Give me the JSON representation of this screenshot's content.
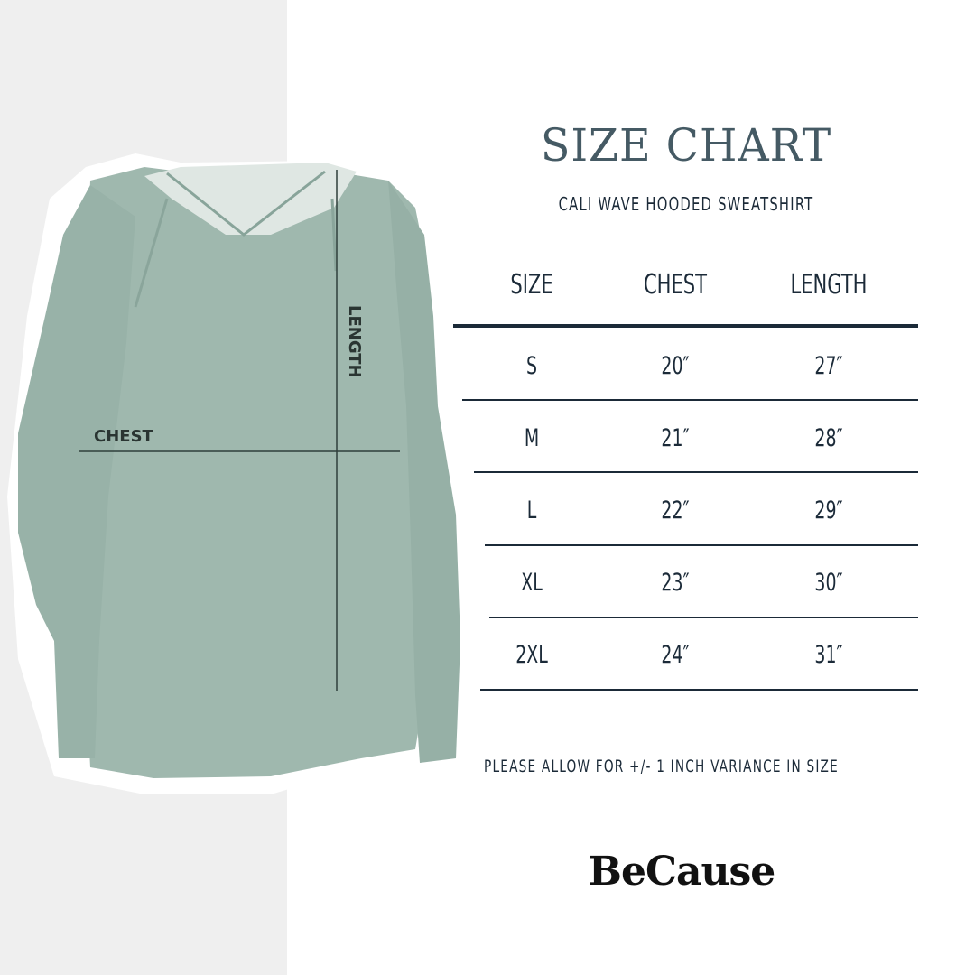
{
  "title": "SIZE CHART",
  "subtitle": "CALI WAVE HOODED SWEATSHIRT",
  "image_labels": {
    "chest": "CHEST",
    "length": "LENGTH"
  },
  "table": {
    "headers": [
      "SIZE",
      "CHEST",
      "LENGTH"
    ],
    "rows": [
      {
        "size": "S",
        "chest": "20″",
        "length": "27″"
      },
      {
        "size": "M",
        "chest": "21″",
        "length": "28″"
      },
      {
        "size": "L",
        "chest": "22″",
        "length": "29″"
      },
      {
        "size": "XL",
        "chest": "23″",
        "length": "30″"
      },
      {
        "size": "2XL",
        "chest": "24″",
        "length": "31″"
      }
    ]
  },
  "note": "PLEASE ALLOW FOR +/- 1 INCH VARIANCE IN SIZE",
  "brand": "BeCause",
  "colors": {
    "garment": "#9fb8ae",
    "title": "#455a64",
    "text": "#1b2a38",
    "panel": "#efefef"
  }
}
